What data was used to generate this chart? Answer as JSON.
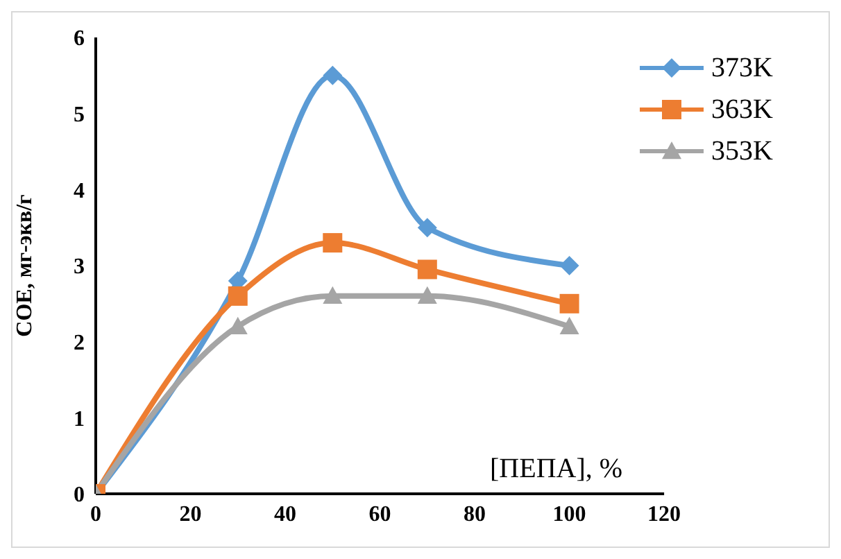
{
  "chart_data": {
    "type": "line",
    "xlabel": "[ПЕПА], %",
    "ylabel": "СОЕ, мг-экв/г",
    "x": [
      0,
      30,
      50,
      70,
      100
    ],
    "series": [
      {
        "name": "373K",
        "color": "#5b9bd5",
        "marker": "diamond",
        "values": [
          0,
          2.8,
          5.5,
          3.5,
          3.0
        ]
      },
      {
        "name": "363K",
        "color": "#ed7d31",
        "marker": "square",
        "values": [
          0,
          2.6,
          3.3,
          2.95,
          2.5
        ]
      },
      {
        "name": "353K",
        "color": "#a5a5a5",
        "marker": "triangle",
        "values": [
          0,
          2.2,
          2.6,
          2.6,
          2.2
        ]
      }
    ],
    "xlim": [
      0,
      120
    ],
    "xticks": [
      0,
      20,
      40,
      60,
      80,
      100,
      120
    ],
    "ylim": [
      0,
      6
    ],
    "yticks": [
      0,
      1,
      2,
      3,
      4,
      5,
      6
    ],
    "grid": false,
    "legend": "top right",
    "line_style": "solid"
  }
}
